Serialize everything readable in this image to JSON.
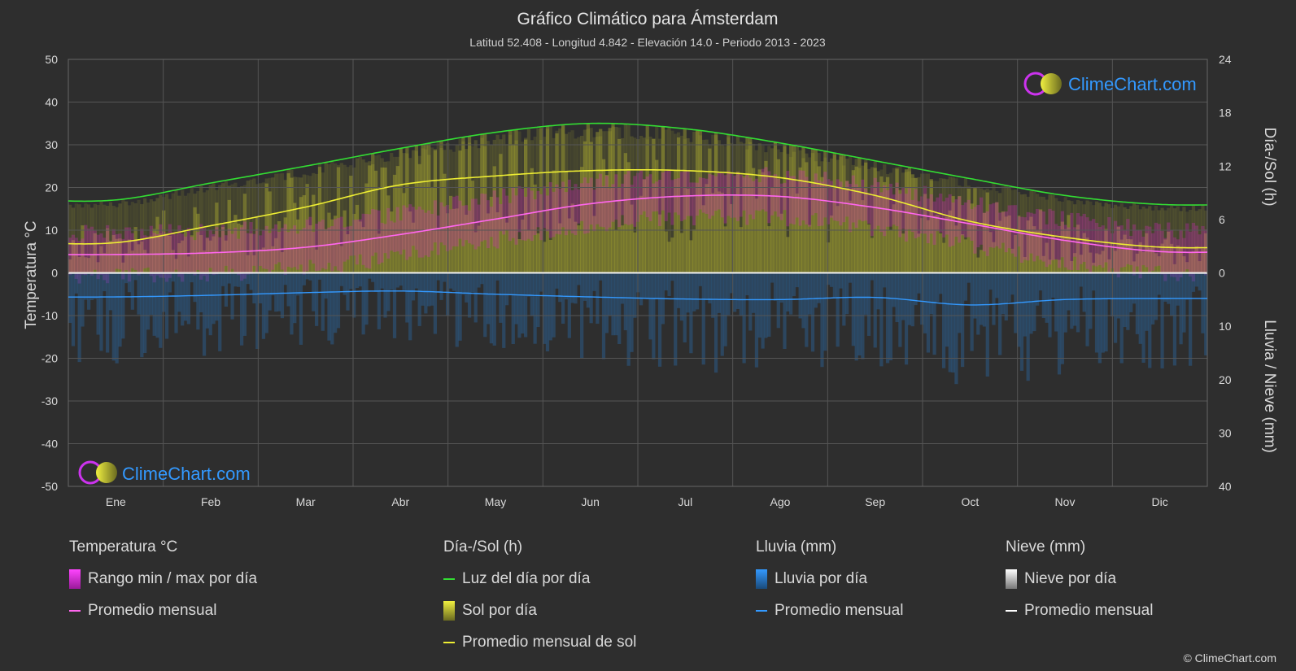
{
  "title": "Gráfico Climático para Ámsterdam",
  "subtitle": "Latitud 52.408 - Longitud 4.842 - Elevación 14.0 - Periodo 2013 - 2023",
  "watermark": "ClimeChart.com",
  "credit": "© ClimeChart.com",
  "colors": {
    "background": "#2e2e2e",
    "grid": "#555555",
    "daylight": "#33dd33",
    "sun_avg": "#eeee33",
    "temp_avg": "#ff66ee",
    "rain_avg": "#3399ff",
    "snow_avg": "#ffffff",
    "temp_range": "#dd22cc",
    "sun_fill": "#c8c832",
    "rain_fill": "#2a6fb0",
    "brand_blue": "#3399ff"
  },
  "legend": {
    "temp": {
      "header": "Temperatura °C",
      "range": "Rango min / max por día",
      "avg": "Promedio mensual"
    },
    "sun": {
      "header": "Día-/Sol (h)",
      "daylight": "Luz del día por día",
      "sun": "Sol por día",
      "avg": "Promedio mensual de sol"
    },
    "rain": {
      "header": "Lluvia (mm)",
      "daily": "Lluvia por día",
      "avg": "Promedio mensual"
    },
    "snow": {
      "header": "Nieve (mm)",
      "daily": "Nieve por día",
      "avg": "Promedio mensual"
    }
  },
  "chart_data": {
    "type": "line",
    "categories": [
      "Ene",
      "Feb",
      "Mar",
      "Abr",
      "May",
      "Jun",
      "Jul",
      "Ago",
      "Sep",
      "Oct",
      "Nov",
      "Dic"
    ],
    "y_left": {
      "label": "Temperatura °C",
      "range": [
        -50,
        50
      ],
      "ticks": [
        50,
        40,
        30,
        20,
        10,
        0,
        -10,
        -20,
        -30,
        -40,
        -50
      ]
    },
    "y_right_top": {
      "label": "Día-/Sol (h)",
      "range": [
        0,
        24
      ],
      "ticks": [
        24,
        18,
        12,
        6,
        0
      ]
    },
    "y_right_bottom": {
      "label": "Lluvia / Nieve (mm)",
      "range": [
        0,
        40
      ],
      "ticks": [
        10,
        20,
        30,
        40
      ]
    },
    "grid": true,
    "series": [
      {
        "name": "Luz del día por día",
        "axis": "hours",
        "values": [
          8.2,
          10.1,
          12.0,
          14.0,
          15.8,
          16.8,
          16.2,
          14.6,
          12.6,
          10.6,
          8.7,
          7.7
        ]
      },
      {
        "name": "Promedio mensual de sol",
        "axis": "hours",
        "values": [
          3.4,
          5.3,
          7.4,
          9.9,
          10.9,
          11.5,
          11.5,
          10.7,
          8.7,
          5.8,
          4.0,
          2.9
        ]
      },
      {
        "name": "Promedio mensual",
        "axis": "temperature",
        "values": [
          4.3,
          4.7,
          6.0,
          9.0,
          12.6,
          16.2,
          18.0,
          17.9,
          15.3,
          11.5,
          7.6,
          5.0
        ]
      },
      {
        "name": "Promedio mensual",
        "axis": "rain",
        "values": [
          4.5,
          4.2,
          3.7,
          3.4,
          4.0,
          4.5,
          4.9,
          5.0,
          4.6,
          6.0,
          5.0,
          4.8
        ]
      },
      {
        "name": "Promedio mensual",
        "axis": "snow",
        "values": [
          0.1,
          0.1,
          0.0,
          0.0,
          0.0,
          0.0,
          0.0,
          0.0,
          0.0,
          0.0,
          0.0,
          0.1
        ]
      }
    ]
  }
}
